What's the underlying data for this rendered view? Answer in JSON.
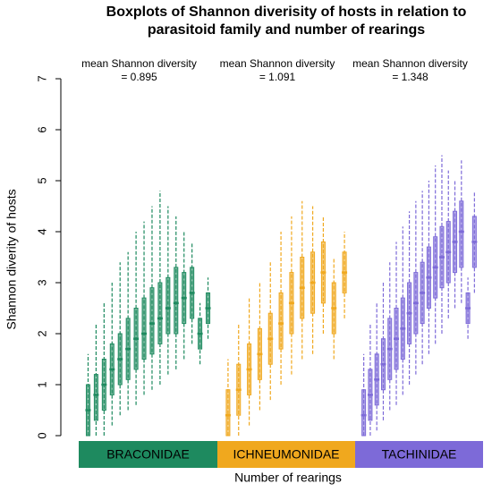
{
  "chart_data": {
    "type": "boxplot",
    "title": [
      "Boxplots of Shannon diverisity of hosts in relation to",
      "parasitoid family and number of rearings"
    ],
    "y_label": "Shannon diverity of hosts",
    "x_label": "Number of rearings",
    "ylim": [
      0,
      7
    ],
    "yticks": [
      0,
      1,
      2,
      3,
      4,
      5,
      6,
      7
    ],
    "annotations": [
      {
        "text": "mean Shannon diversity",
        "value": "= 0.895"
      },
      {
        "text": "mean Shannon diversity",
        "value": "= 1.091"
      },
      {
        "text": "mean Shannon diversity",
        "value": "= 1.348"
      }
    ],
    "series": [
      {
        "name": "BRACONIDAE",
        "color": "#1e8a5f",
        "boxes": [
          [
            0,
            0,
            0.5,
            1,
            1.6
          ],
          [
            0,
            0.3,
            0.8,
            1.2,
            2.2
          ],
          [
            0,
            0.5,
            1,
            1.5,
            2.6
          ],
          [
            0.2,
            0.8,
            1.3,
            1.8,
            3
          ],
          [
            0.4,
            1,
            1.5,
            2,
            3.4
          ],
          [
            0.5,
            1.1,
            1.7,
            2.3,
            3.6
          ],
          [
            0.6,
            1.3,
            1.9,
            2.5,
            4
          ],
          [
            0.8,
            1.5,
            2,
            2.7,
            4.2
          ],
          [
            0.9,
            1.6,
            2.2,
            2.9,
            4.5
          ],
          [
            1,
            1.8,
            2.3,
            3,
            4.8
          ],
          [
            1.2,
            2,
            2.5,
            3.1,
            4.5
          ],
          [
            1.3,
            2,
            2.6,
            3.3,
            4.3
          ],
          [
            1.5,
            2.2,
            2.7,
            3.2,
            4
          ],
          [
            1.8,
            2.3,
            2.8,
            3.3,
            3.8
          ],
          [
            1.4,
            1.7,
            2,
            2.3,
            2.6
          ],
          [
            1.9,
            2.2,
            2.5,
            2.8,
            3.1
          ]
        ]
      },
      {
        "name": "ICHNEUMONIDAE",
        "color": "#f0a81e",
        "boxes": [
          [
            0,
            0,
            0.4,
            0.9,
            1.5
          ],
          [
            0,
            0.4,
            0.9,
            1.4,
            2.2
          ],
          [
            0.2,
            0.8,
            1.3,
            1.8,
            2.7
          ],
          [
            0.5,
            1.1,
            1.6,
            2.1,
            3
          ],
          [
            0.7,
            1.4,
            1.9,
            2.4,
            3.4
          ],
          [
            1,
            1.7,
            2.2,
            2.8,
            4
          ],
          [
            1.2,
            2,
            2.6,
            3.2,
            4.3
          ],
          [
            1.5,
            2.3,
            2.9,
            3.5,
            4.6
          ],
          [
            1.6,
            2.4,
            3,
            3.6,
            4.5
          ],
          [
            2,
            2.6,
            3.2,
            3.8,
            4.3
          ],
          [
            1.5,
            2,
            2.5,
            3,
            3.5
          ],
          [
            2.3,
            2.8,
            3.2,
            3.6,
            4
          ]
        ]
      },
      {
        "name": "TACHINIDAE",
        "color": "#7d6ad8",
        "boxes": [
          [
            0,
            0,
            0.4,
            0.9,
            1.6
          ],
          [
            0,
            0.3,
            0.8,
            1.3,
            2.2
          ],
          [
            0.1,
            0.6,
            1.1,
            1.6,
            2.6
          ],
          [
            0.3,
            0.9,
            1.4,
            1.9,
            3
          ],
          [
            0.5,
            1.1,
            1.7,
            2.3,
            3.4
          ],
          [
            0.6,
            1.3,
            1.9,
            2.5,
            3.8
          ],
          [
            0.8,
            1.5,
            2.1,
            2.7,
            4.1
          ],
          [
            1,
            1.8,
            2.4,
            3,
            4.4
          ],
          [
            1.2,
            2,
            2.6,
            3.2,
            4.6
          ],
          [
            1.4,
            2.2,
            2.8,
            3.4,
            4.8
          ],
          [
            1.6,
            2.5,
            3.1,
            3.7,
            5
          ],
          [
            1.8,
            2.7,
            3.3,
            3.9,
            5.3
          ],
          [
            2,
            2.9,
            3.5,
            4.1,
            5.5
          ],
          [
            2.3,
            3,
            3.6,
            4.2,
            5.2
          ],
          [
            2.5,
            3.2,
            3.8,
            4.4,
            5
          ],
          [
            2.6,
            3.3,
            4,
            4.6,
            5.4
          ],
          [
            1.9,
            2.2,
            2.5,
            2.8,
            3.1
          ],
          [
            2.8,
            3.3,
            3.8,
            4.3,
            4.8
          ]
        ]
      }
    ]
  }
}
